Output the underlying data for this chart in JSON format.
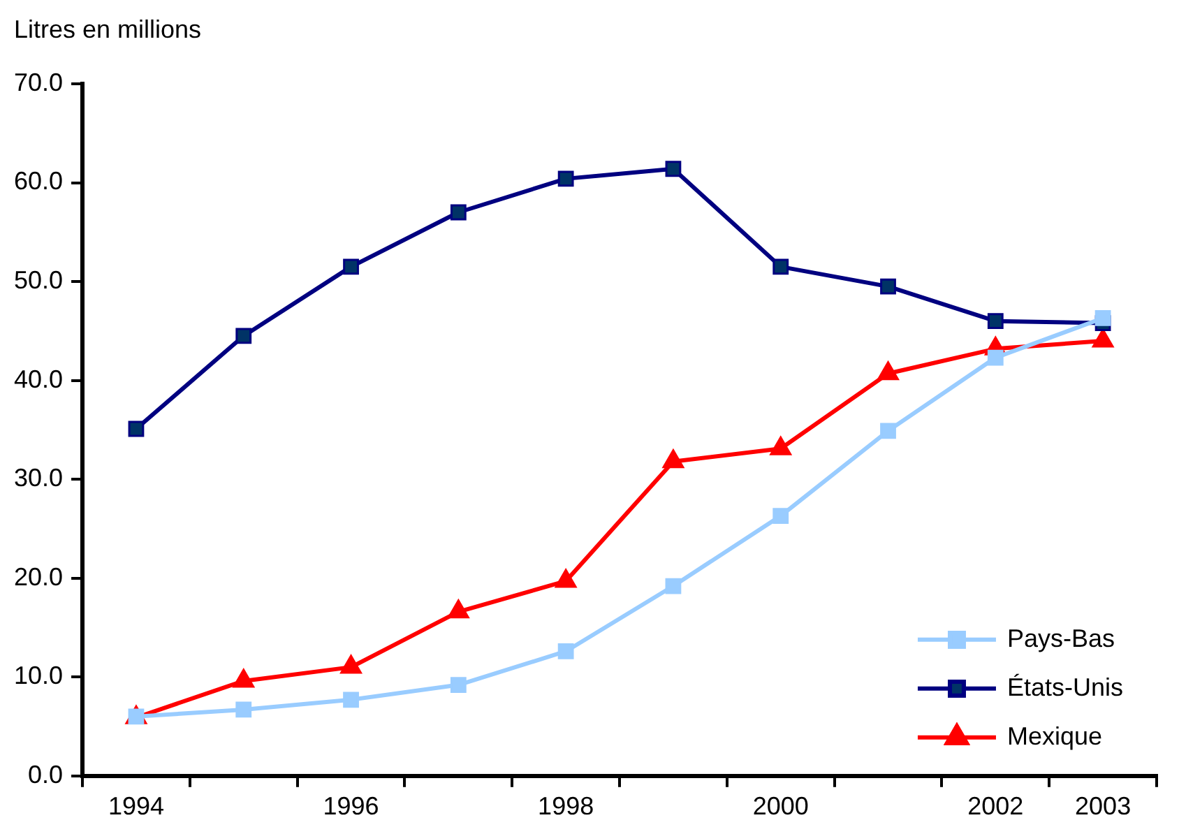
{
  "chart_data": {
    "type": "line",
    "ylabel": "Litres en millions",
    "categories": [
      "1994",
      null,
      "1996",
      null,
      "1998",
      null,
      "2000",
      null,
      "2002",
      "2003"
    ],
    "series": [
      {
        "name": "Pays-Bas",
        "color": "#99ccff",
        "marker": "square",
        "values": [
          6.0,
          6.7,
          7.7,
          9.2,
          12.6,
          19.2,
          26.3,
          34.9,
          42.3,
          46.3
        ]
      },
      {
        "name": "États-Unis",
        "color": "#000080",
        "marker": "square",
        "values": [
          35.1,
          44.5,
          51.5,
          57.0,
          60.4,
          61.4,
          51.5,
          49.5,
          46.0,
          45.8
        ]
      },
      {
        "name": "Mexique",
        "color": "#ff0000",
        "marker": "triangle",
        "values": [
          5.9,
          9.6,
          11.0,
          16.6,
          19.7,
          31.8,
          33.1,
          40.7,
          43.2,
          44.0
        ]
      }
    ],
    "ylim": [
      0,
      70
    ],
    "yticks": [
      {
        "value": 0,
        "label": "0.0"
      },
      {
        "value": 10,
        "label": "10.0"
      },
      {
        "value": 20,
        "label": "20.0"
      },
      {
        "value": 30,
        "label": "30.0"
      },
      {
        "value": 40,
        "label": "40.0"
      },
      {
        "value": 50,
        "label": "50.0"
      },
      {
        "value": 60,
        "label": "60.0"
      },
      {
        "value": 70,
        "label": "70.0"
      }
    ],
    "grid": false,
    "legend": "bottom right",
    "line_style": "solid"
  }
}
